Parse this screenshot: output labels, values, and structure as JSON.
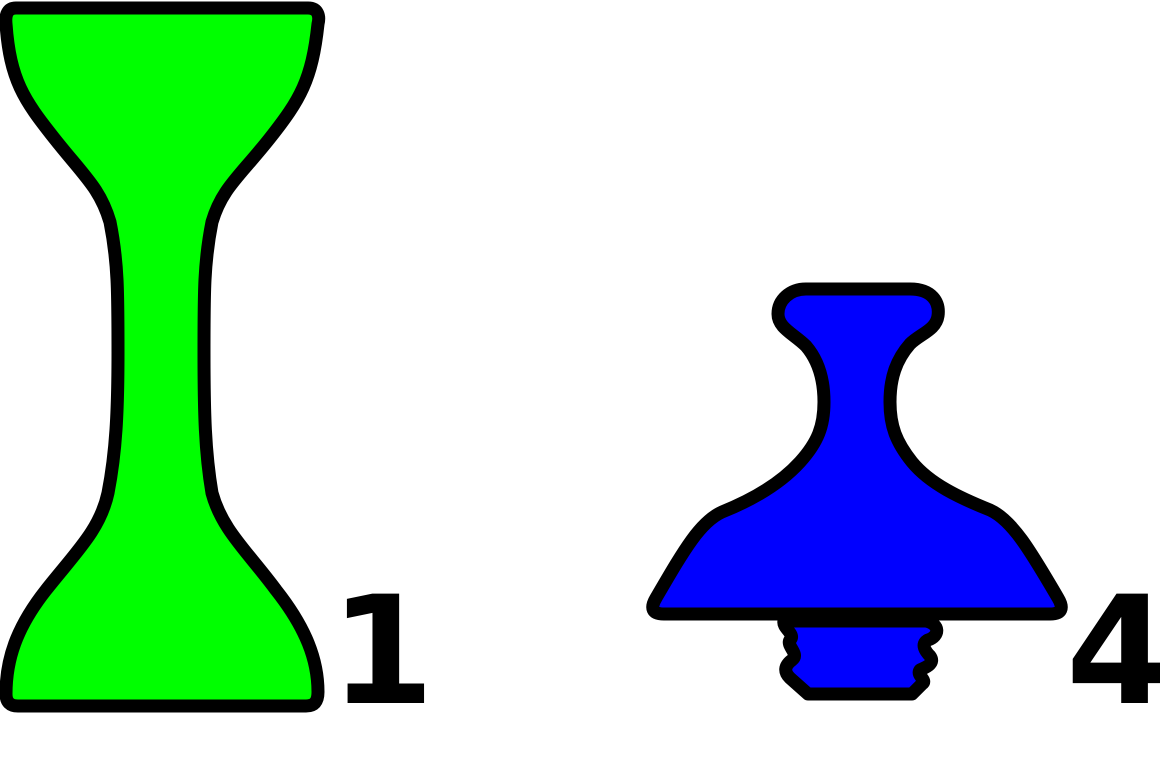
{
  "shapes": [
    {
      "id": "shape-1",
      "color": "#00ff00",
      "outline": "#000000",
      "label": "1"
    },
    {
      "id": "shape-4",
      "color": "#0000ff",
      "outline": "#000000",
      "label": "4"
    }
  ]
}
